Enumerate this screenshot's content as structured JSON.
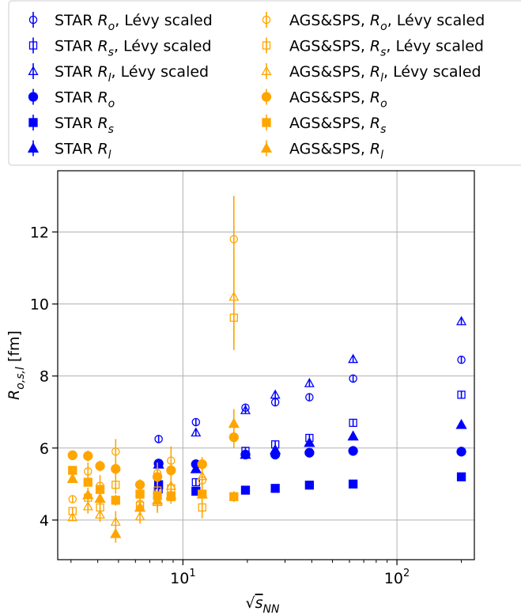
{
  "chart_data": {
    "type": "scatter",
    "xlabel": "√s_NN",
    "ylabel": "R_{o,s,l} [fm]",
    "x_scale": "log",
    "xlim": [
      2.6,
      230
    ],
    "ylim": [
      2.9,
      13.7
    ],
    "grid": true,
    "legend_position": "top",
    "x_tick_labels": [
      {
        "value": 10,
        "base": "10",
        "exp": "1"
      },
      {
        "value": 100,
        "base": "10",
        "exp": "2"
      }
    ],
    "y_ticks": [
      4,
      6,
      8,
      10,
      12
    ],
    "colors": {
      "star": "#0000ff",
      "ags": "#ffa500",
      "grid": "#b0b0b0"
    },
    "series": [
      {
        "name": "STAR Rₒ, Lévy scaled",
        "group": "star",
        "marker": "circle",
        "filled": false,
        "x": [
          7.7,
          11.5,
          19.6,
          27,
          39,
          62.4,
          200
        ],
        "y": [
          6.25,
          6.72,
          7.12,
          7.27,
          7.41,
          7.93,
          8.45
        ],
        "err": [
          0.1,
          0.1,
          0.1,
          0.1,
          0.1,
          0.1,
          0.1
        ]
      },
      {
        "name": "STAR Rₛ, Lévy scaled",
        "group": "star",
        "marker": "square",
        "filled": false,
        "x": [
          7.7,
          11.5,
          19.6,
          27,
          39,
          62.4,
          200
        ],
        "y": [
          4.85,
          5.05,
          5.92,
          6.1,
          6.28,
          6.7,
          7.48
        ],
        "err": [
          0.1,
          0.1,
          0.1,
          0.1,
          0.1,
          0.1,
          0.1
        ]
      },
      {
        "name": "STAR Rₗ, Lévy scaled",
        "group": "star",
        "marker": "triangle",
        "filled": false,
        "x": [
          7.7,
          11.5,
          19.6,
          27,
          39,
          62.4,
          200
        ],
        "y": [
          5.55,
          6.43,
          7.05,
          7.48,
          7.8,
          8.47,
          9.52
        ],
        "err": [
          0.1,
          0.1,
          0.1,
          0.1,
          0.1,
          0.1,
          0.1
        ]
      },
      {
        "name": "STAR Rₒ",
        "group": "star",
        "marker": "circle",
        "filled": true,
        "x": [
          7.7,
          11.5,
          19.6,
          27,
          39,
          62.4,
          200
        ],
        "y": [
          5.57,
          5.55,
          5.82,
          5.82,
          5.87,
          5.92,
          5.9
        ],
        "err": [
          0.08,
          0.08,
          0.08,
          0.08,
          0.08,
          0.08,
          0.08
        ]
      },
      {
        "name": "STAR Rₛ",
        "group": "star",
        "marker": "square",
        "filled": true,
        "x": [
          7.7,
          11.5,
          19.6,
          27,
          39,
          62.4,
          200
        ],
        "y": [
          4.98,
          4.8,
          4.83,
          4.88,
          4.97,
          5.0,
          5.2
        ],
        "err": [
          0.08,
          0.08,
          0.08,
          0.08,
          0.08,
          0.08,
          0.08
        ]
      },
      {
        "name": "STAR Rₗ",
        "group": "star",
        "marker": "triangle",
        "filled": true,
        "x": [
          7.7,
          11.5,
          19.6,
          27,
          39,
          62.4,
          200
        ],
        "y": [
          5.55,
          5.42,
          5.82,
          5.95,
          6.15,
          6.33,
          6.65
        ],
        "err": [
          0.08,
          0.08,
          0.08,
          0.08,
          0.08,
          0.08,
          0.08
        ]
      },
      {
        "name": "AGS&SPS, Rₒ, Lévy scaled",
        "group": "ags",
        "marker": "circle",
        "filled": false,
        "x": [
          3.05,
          3.6,
          4.1,
          4.85,
          6.3,
          7.6,
          8.8,
          12.3,
          17.3
        ],
        "y": [
          4.58,
          5.35,
          4.95,
          5.9,
          4.45,
          5.3,
          5.65,
          5.1,
          11.8
        ],
        "err": [
          0.1,
          0.25,
          0.3,
          0.35,
          0.2,
          0.3,
          0.4,
          0.35,
          1.2
        ]
      },
      {
        "name": "AGS&SPS, Rₛ, Lévy scaled",
        "group": "ags",
        "marker": "square",
        "filled": false,
        "x": [
          3.05,
          3.6,
          4.1,
          4.85,
          6.3,
          7.6,
          8.8,
          12.3,
          17.3
        ],
        "y": [
          4.25,
          4.62,
          4.35,
          4.98,
          4.4,
          4.82,
          4.88,
          4.35,
          9.62
        ],
        "err": [
          0.1,
          0.2,
          0.2,
          0.25,
          0.15,
          0.2,
          0.25,
          0.3,
          0.9
        ]
      },
      {
        "name": "AGS&SPS, Rₗ, Lévy scaled",
        "group": "ags",
        "marker": "triangle",
        "filled": false,
        "x": [
          3.05,
          3.6,
          4.1,
          4.85,
          6.3,
          7.6,
          8.8,
          12.3,
          17.3
        ],
        "y": [
          4.08,
          4.38,
          4.15,
          3.95,
          4.1,
          4.5,
          4.95,
          5.22,
          10.2
        ],
        "err": [
          0.1,
          0.2,
          0.2,
          0.3,
          0.2,
          0.3,
          0.3,
          0.35,
          1.2
        ]
      },
      {
        "name": "AGS&SPS, Rₒ",
        "group": "ags",
        "marker": "circle",
        "filled": true,
        "x": [
          3.05,
          3.6,
          4.1,
          4.85,
          6.3,
          7.6,
          8.8,
          12.3,
          17.3
        ],
        "y": [
          5.8,
          5.78,
          5.5,
          5.42,
          4.98,
          5.2,
          5.38,
          5.55,
          6.3
        ],
        "err": [
          0.1,
          0.15,
          0.15,
          0.2,
          0.15,
          0.2,
          0.2,
          0.2,
          0.3
        ]
      },
      {
        "name": "AGS&SPS, Rₛ",
        "group": "ags",
        "marker": "square",
        "filled": true,
        "x": [
          3.05,
          3.6,
          4.1,
          4.85,
          6.3,
          7.6,
          8.8,
          12.3,
          17.3
        ],
        "y": [
          5.38,
          5.05,
          4.85,
          4.55,
          4.72,
          4.68,
          4.65,
          4.72,
          4.65
        ],
        "err": [
          0.08,
          0.12,
          0.12,
          0.15,
          0.12,
          0.15,
          0.15,
          0.15,
          0.15
        ]
      },
      {
        "name": "AGS&SPS, Rₗ",
        "group": "ags",
        "marker": "triangle",
        "filled": true,
        "x": [
          3.05,
          3.6,
          4.1,
          4.85,
          6.3,
          7.6,
          8.8,
          12.3,
          17.3
        ],
        "y": [
          5.15,
          4.7,
          4.6,
          3.62,
          4.35,
          4.55,
          4.7,
          4.72,
          6.68
        ],
        "err": [
          0.1,
          0.2,
          0.2,
          0.25,
          0.2,
          0.3,
          0.25,
          0.25,
          0.4
        ]
      }
    ],
    "legend": [
      {
        "series": 0,
        "parts": [
          {
            "t": "STAR "
          },
          {
            "t": "R",
            "i": true
          },
          {
            "t": "o",
            "sub": true
          },
          {
            "t": ", Lévy scaled"
          }
        ]
      },
      {
        "series": 1,
        "parts": [
          {
            "t": "STAR "
          },
          {
            "t": "R",
            "i": true
          },
          {
            "t": "s",
            "sub": true
          },
          {
            "t": ", Lévy scaled"
          }
        ]
      },
      {
        "series": 2,
        "parts": [
          {
            "t": "STAR "
          },
          {
            "t": "R",
            "i": true
          },
          {
            "t": "l",
            "sub": true
          },
          {
            "t": ", Lévy scaled"
          }
        ]
      },
      {
        "series": 3,
        "parts": [
          {
            "t": "STAR "
          },
          {
            "t": "R",
            "i": true
          },
          {
            "t": "o",
            "sub": true
          }
        ]
      },
      {
        "series": 4,
        "parts": [
          {
            "t": "STAR "
          },
          {
            "t": "R",
            "i": true
          },
          {
            "t": "s",
            "sub": true
          }
        ]
      },
      {
        "series": 5,
        "parts": [
          {
            "t": "STAR "
          },
          {
            "t": "R",
            "i": true
          },
          {
            "t": "l",
            "sub": true
          }
        ]
      },
      {
        "series": 6,
        "parts": [
          {
            "t": "AGS&SPS, "
          },
          {
            "t": "R",
            "i": true
          },
          {
            "t": "o",
            "sub": true
          },
          {
            "t": ", Lévy scaled"
          }
        ]
      },
      {
        "series": 7,
        "parts": [
          {
            "t": "AGS&SPS, "
          },
          {
            "t": "R",
            "i": true
          },
          {
            "t": "s",
            "sub": true
          },
          {
            "t": ", Lévy scaled"
          }
        ]
      },
      {
        "series": 8,
        "parts": [
          {
            "t": "AGS&SPS, "
          },
          {
            "t": "R",
            "i": true
          },
          {
            "t": "l",
            "sub": true
          },
          {
            "t": ", Lévy scaled"
          }
        ]
      },
      {
        "series": 9,
        "parts": [
          {
            "t": "AGS&SPS, "
          },
          {
            "t": "R",
            "i": true
          },
          {
            "t": "o",
            "sub": true
          }
        ]
      },
      {
        "series": 10,
        "parts": [
          {
            "t": "AGS&SPS, "
          },
          {
            "t": "R",
            "i": true
          },
          {
            "t": "s",
            "sub": true
          }
        ]
      },
      {
        "series": 11,
        "parts": [
          {
            "t": "AGS&SPS, "
          },
          {
            "t": "R",
            "i": true
          },
          {
            "t": "l",
            "sub": true
          }
        ]
      }
    ]
  }
}
